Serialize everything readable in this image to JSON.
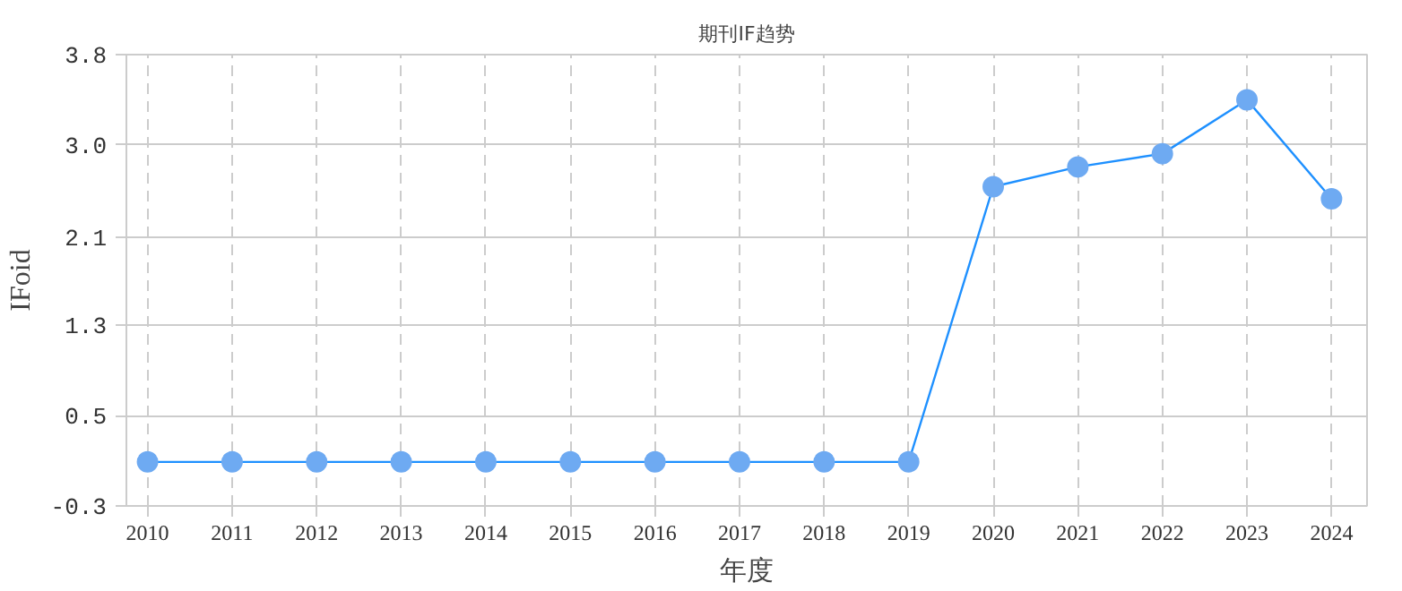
{
  "chart_data": {
    "type": "line",
    "title": "期刊IF趋势",
    "xlabel": "年度",
    "ylabel": "IFoid",
    "categories": [
      "2010",
      "2011",
      "2012",
      "2013",
      "2014",
      "2015",
      "2016",
      "2017",
      "2018",
      "2019",
      "2020",
      "2021",
      "2022",
      "2023",
      "2024"
    ],
    "series": [
      {
        "color": "#1e90ff",
        "values": [
          0.1,
          0.1,
          0.1,
          0.1,
          0.1,
          0.1,
          0.1,
          0.1,
          0.1,
          0.1,
          2.6,
          2.78,
          2.9,
          3.39,
          2.49
        ]
      }
    ],
    "ylim": [
      -0.3,
      3.8
    ],
    "yticks": [
      -0.3,
      {
        "value": 0.52,
        "label": "0.5"
      },
      {
        "value": 1.34,
        "label": "1.3"
      },
      {
        "value": 2.14,
        "label": "2.1"
      },
      {
        "value": 2.98,
        "label": "3.0"
      },
      3.8
    ],
    "grid": true,
    "marker": "circle",
    "line_style": "solid"
  }
}
